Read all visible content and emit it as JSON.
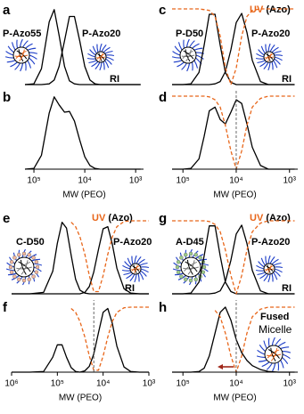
{
  "chart_data": [
    {
      "type": "line",
      "label": "a",
      "ri_label": "RI",
      "x": [
        150000,
        100000,
        71000,
        50000,
        40000,
        32000,
        25000,
        20000,
        16000,
        12600,
        10000,
        7900,
        6300,
        5000,
        3500,
        2500,
        1600,
        1000,
        800
      ],
      "xlim": [
        150000,
        700
      ],
      "ylim": [
        0,
        1
      ],
      "series": [
        {
          "name": "P-Azo55",
          "color": "#000000",
          "linestyle": "solid",
          "values": [
            0,
            0.01,
            0.21,
            0.83,
            0.99,
            0.65,
            0.24,
            0.05,
            0.01,
            0,
            0,
            0,
            0,
            0,
            0,
            0,
            0,
            0,
            0
          ]
        },
        {
          "name": "P-Azo20",
          "color": "#000000",
          "linestyle": "solid",
          "values": [
            0,
            0,
            0,
            0.01,
            0.06,
            0.24,
            0.58,
            0.9,
            0.9,
            0.58,
            0.24,
            0.06,
            0.01,
            0,
            0,
            0,
            0,
            0,
            0
          ]
        }
      ]
    },
    {
      "type": "line",
      "label": "b",
      "x": [
        150000,
        100000,
        71000,
        50000,
        40000,
        32000,
        25000,
        20000,
        16000,
        12600,
        10000,
        7900,
        6300,
        5000,
        3500,
        2500,
        1600,
        1000,
        800
      ],
      "xlim": [
        150000,
        700
      ],
      "ylim": [
        0,
        1
      ],
      "xticks": [
        {
          "value": 100000,
          "label": "10⁵"
        },
        {
          "value": 10000,
          "label": "10⁴"
        },
        {
          "value": 1000,
          "label": "10³"
        }
      ],
      "xlabel": "MW (PEO)",
      "series": [
        {
          "color": "#000000",
          "linestyle": "solid",
          "values": [
            0,
            0.01,
            0.19,
            0.77,
            0.99,
            0.88,
            0.78,
            0.79,
            0.66,
            0.4,
            0.17,
            0.05,
            0.01,
            0,
            0,
            0,
            0,
            0,
            0
          ]
        }
      ]
    },
    {
      "type": "line",
      "label": "c",
      "ri_label": "RI",
      "uv_note": "(Azo)",
      "x": [
        160000,
        100000,
        71000,
        50000,
        40000,
        32000,
        25000,
        20000,
        16000,
        12600,
        10000,
        7900,
        6300,
        5000,
        3500,
        2500,
        1600,
        1000,
        800
      ],
      "xlim": [
        160000,
        700
      ],
      "ylim": [
        0,
        1
      ],
      "series": [
        {
          "name": "P-D50",
          "color": "#000000",
          "linestyle": "solid",
          "values": [
            0,
            0,
            0.01,
            0.16,
            0.52,
            0.93,
            0.93,
            0.52,
            0.16,
            0.03,
            0,
            0,
            0,
            0,
            0,
            0,
            0,
            0,
            0
          ]
        },
        {
          "name": "P-Azo20",
          "color": "#000000",
          "linestyle": "solid",
          "values": [
            0,
            0,
            0,
            0,
            0,
            0,
            0.01,
            0.04,
            0.17,
            0.46,
            0.82,
            0.94,
            0.69,
            0.32,
            0.04,
            0,
            0,
            0,
            0
          ]
        },
        {
          "name": "UV",
          "color": "#e8661a",
          "linestyle": "dashed",
          "values": [
            1,
            1,
            1,
            1,
            0.99,
            0.98,
            0.9,
            0.64,
            0.22,
            0,
            0.22,
            0.64,
            0.9,
            0.98,
            1,
            1,
            1,
            1,
            1
          ]
        }
      ]
    },
    {
      "type": "line",
      "label": "d",
      "x": [
        160000,
        100000,
        71000,
        50000,
        40000,
        32000,
        25000,
        20000,
        16000,
        12600,
        10000,
        7900,
        6300,
        5000,
        3500,
        2500,
        1600,
        1000,
        800
      ],
      "xlim": [
        160000,
        700
      ],
      "ylim": [
        0,
        1
      ],
      "xticks": [
        {
          "value": 100000,
          "label": "10⁵"
        },
        {
          "value": 10000,
          "label": "10⁴"
        },
        {
          "value": 1000,
          "label": "10³"
        }
      ],
      "xlabel": "MW (PEO)",
      "series": [
        {
          "color": "#000000",
          "linestyle": "solid",
          "values": [
            0,
            0,
            0.01,
            0.14,
            0.45,
            0.8,
            0.85,
            0.68,
            0.62,
            0.78,
            0.95,
            0.9,
            0.62,
            0.3,
            0.05,
            0,
            0,
            0,
            0
          ]
        },
        {
          "color": "#e8661a",
          "linestyle": "dashed",
          "values": [
            1,
            1,
            1,
            1,
            1,
            0.99,
            0.95,
            0.85,
            0.6,
            0.25,
            0,
            0.25,
            0.6,
            0.85,
            0.97,
            1,
            1,
            1,
            1
          ]
        }
      ]
    },
    {
      "type": "line",
      "label": "e",
      "ri_label": "RI",
      "uv_note": "(Azo)",
      "x": [
        1000000,
        400000,
        200000,
        126000,
        100000,
        79000,
        63000,
        50000,
        40000,
        32000,
        25000,
        20000,
        16000,
        12600,
        10000,
        7900,
        6300,
        5000,
        3500,
        2500,
        1600,
        1000
      ],
      "xlim": [
        1000000,
        1000
      ],
      "ylim": [
        0,
        1
      ],
      "series": [
        {
          "name": "C-D50",
          "color": "#000000",
          "linestyle": "solid",
          "values": [
            0,
            0,
            0.02,
            0.31,
            0.69,
            0.98,
            0.9,
            0.53,
            0.2,
            0.05,
            0.01,
            0,
            0,
            0,
            0,
            0,
            0,
            0,
            0,
            0,
            0,
            0
          ]
        },
        {
          "name": "P-Azo20",
          "color": "#000000",
          "linestyle": "solid",
          "values": [
            0,
            0,
            0,
            0,
            0,
            0,
            0,
            0,
            0,
            0,
            0.02,
            0.1,
            0.3,
            0.61,
            0.89,
            0.92,
            0.68,
            0.35,
            0.07,
            0.01,
            0,
            0
          ]
        },
        {
          "name": "UV",
          "color": "#e8661a",
          "linestyle": "dashed",
          "values": [
            null,
            null,
            null,
            null,
            null,
            null,
            null,
            0.98,
            0.92,
            0.78,
            0.54,
            0.25,
            0.03,
            0.03,
            0.25,
            0.54,
            0.78,
            0.92,
            0.99,
            1,
            1,
            1
          ]
        }
      ]
    },
    {
      "type": "line",
      "label": "f",
      "x": [
        1000000,
        400000,
        200000,
        126000,
        100000,
        79000,
        63000,
        50000,
        40000,
        32000,
        25000,
        20000,
        16000,
        12600,
        10000,
        7900,
        6300,
        5000,
        3500,
        2500,
        1600,
        1000
      ],
      "xlim": [
        1000000,
        1000
      ],
      "ylim": [
        0,
        1
      ],
      "xticks": [
        {
          "value": 1000000,
          "label": "10⁶"
        },
        {
          "value": 100000,
          "label": "10⁵"
        },
        {
          "value": 10000,
          "label": "10⁴"
        },
        {
          "value": 1000,
          "label": "10³"
        }
      ],
      "xlabel": "MW (PEO)",
      "series": [
        {
          "color": "#000000",
          "linestyle": "solid",
          "values": [
            0,
            0,
            0.01,
            0.23,
            0.42,
            0.42,
            0.23,
            0.07,
            0.01,
            0,
            0.02,
            0.09,
            0.28,
            0.61,
            0.92,
            0.98,
            0.75,
            0.4,
            0.08,
            0.01,
            0,
            0
          ]
        },
        {
          "color": "#e8661a",
          "linestyle": "dashed",
          "values": [
            null,
            null,
            null,
            null,
            null,
            null,
            null,
            0.98,
            0.92,
            0.78,
            0.54,
            0.25,
            0.03,
            0.03,
            0.25,
            0.54,
            0.78,
            0.92,
            0.99,
            1,
            1,
            1
          ]
        }
      ]
    },
    {
      "type": "line",
      "label": "g",
      "ri_label": "RI",
      "uv_note": "(Azo)",
      "x": [
        160000,
        100000,
        71000,
        50000,
        40000,
        32000,
        25000,
        20000,
        16000,
        12600,
        10000,
        7900,
        6300,
        5000,
        3500,
        2500,
        1600,
        1000,
        800
      ],
      "xlim": [
        160000,
        700
      ],
      "ylim": [
        0,
        1
      ],
      "series": [
        {
          "name": "A-D45",
          "color": "#000000",
          "linestyle": "solid",
          "values": [
            0,
            0,
            0.01,
            0.16,
            0.52,
            0.93,
            0.93,
            0.52,
            0.16,
            0.03,
            0,
            0,
            0,
            0,
            0,
            0,
            0,
            0,
            0
          ]
        },
        {
          "name": "P-Azo20",
          "color": "#000000",
          "linestyle": "solid",
          "values": [
            0,
            0,
            0,
            0,
            0,
            0,
            0.01,
            0.04,
            0.17,
            0.46,
            0.82,
            0.94,
            0.69,
            0.32,
            0.04,
            0,
            0,
            0,
            0
          ]
        },
        {
          "name": "UV",
          "color": "#e8661a",
          "linestyle": "dashed",
          "values": [
            1,
            1,
            1,
            1,
            1,
            0.99,
            0.95,
            0.85,
            0.6,
            0.25,
            0,
            0.25,
            0.6,
            0.85,
            0.97,
            1,
            1,
            1,
            1
          ]
        }
      ]
    },
    {
      "type": "line",
      "label": "h",
      "note_title": "Fused",
      "note_text": "Micelle",
      "x": [
        160000,
        100000,
        71000,
        50000,
        40000,
        32000,
        25000,
        20000,
        16000,
        12600,
        10000,
        7900,
        6300,
        5000,
        3500,
        2500,
        1600,
        1000,
        800
      ],
      "xlim": [
        160000,
        700
      ],
      "ylim": [
        0,
        1
      ],
      "xticks": [
        {
          "value": 100000,
          "label": "10⁵"
        },
        {
          "value": 10000,
          "label": "10⁴"
        },
        {
          "value": 1000,
          "label": "10³"
        }
      ],
      "xlabel": "MW (PEO)",
      "series": [
        {
          "color": "#000000",
          "linestyle": "solid",
          "values": [
            0,
            0,
            0,
            0.01,
            0.06,
            0.25,
            0.6,
            0.92,
            1,
            0.8,
            0.5,
            0.3,
            0.18,
            0.1,
            0.04,
            0.01,
            0,
            0,
            0
          ]
        },
        {
          "color": "#e8661a",
          "linestyle": "dashed",
          "values": [
            null,
            null,
            null,
            null,
            null,
            null,
            0.95,
            0.85,
            0.6,
            0.25,
            0,
            0.25,
            0.6,
            0.85,
            0.97,
            1,
            1,
            1,
            1
          ]
        }
      ]
    }
  ]
}
